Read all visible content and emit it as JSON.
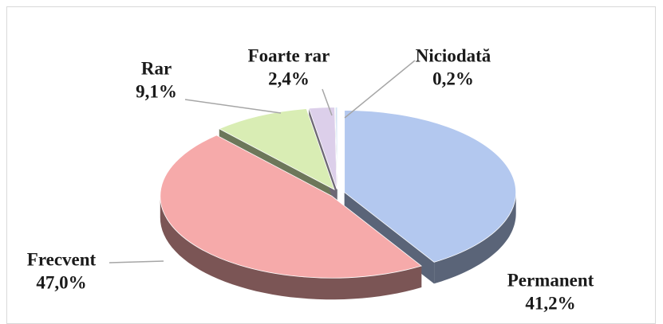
{
  "chart_data": {
    "type": "pie3d",
    "categories": [
      "Permanent",
      "Frecvent",
      "Rar",
      "Foarte rar",
      "Niciodată"
    ],
    "values": [
      41.2,
      47.0,
      9.1,
      2.4,
      0.2
    ],
    "value_labels": [
      "41,2%",
      "47,0%",
      "9,1%",
      "2,4%",
      "0,2%"
    ],
    "colors": [
      "#b3c8ef",
      "#f6aaaa",
      "#d9edb4",
      "#dccfea",
      "#d3e4f4"
    ]
  }
}
